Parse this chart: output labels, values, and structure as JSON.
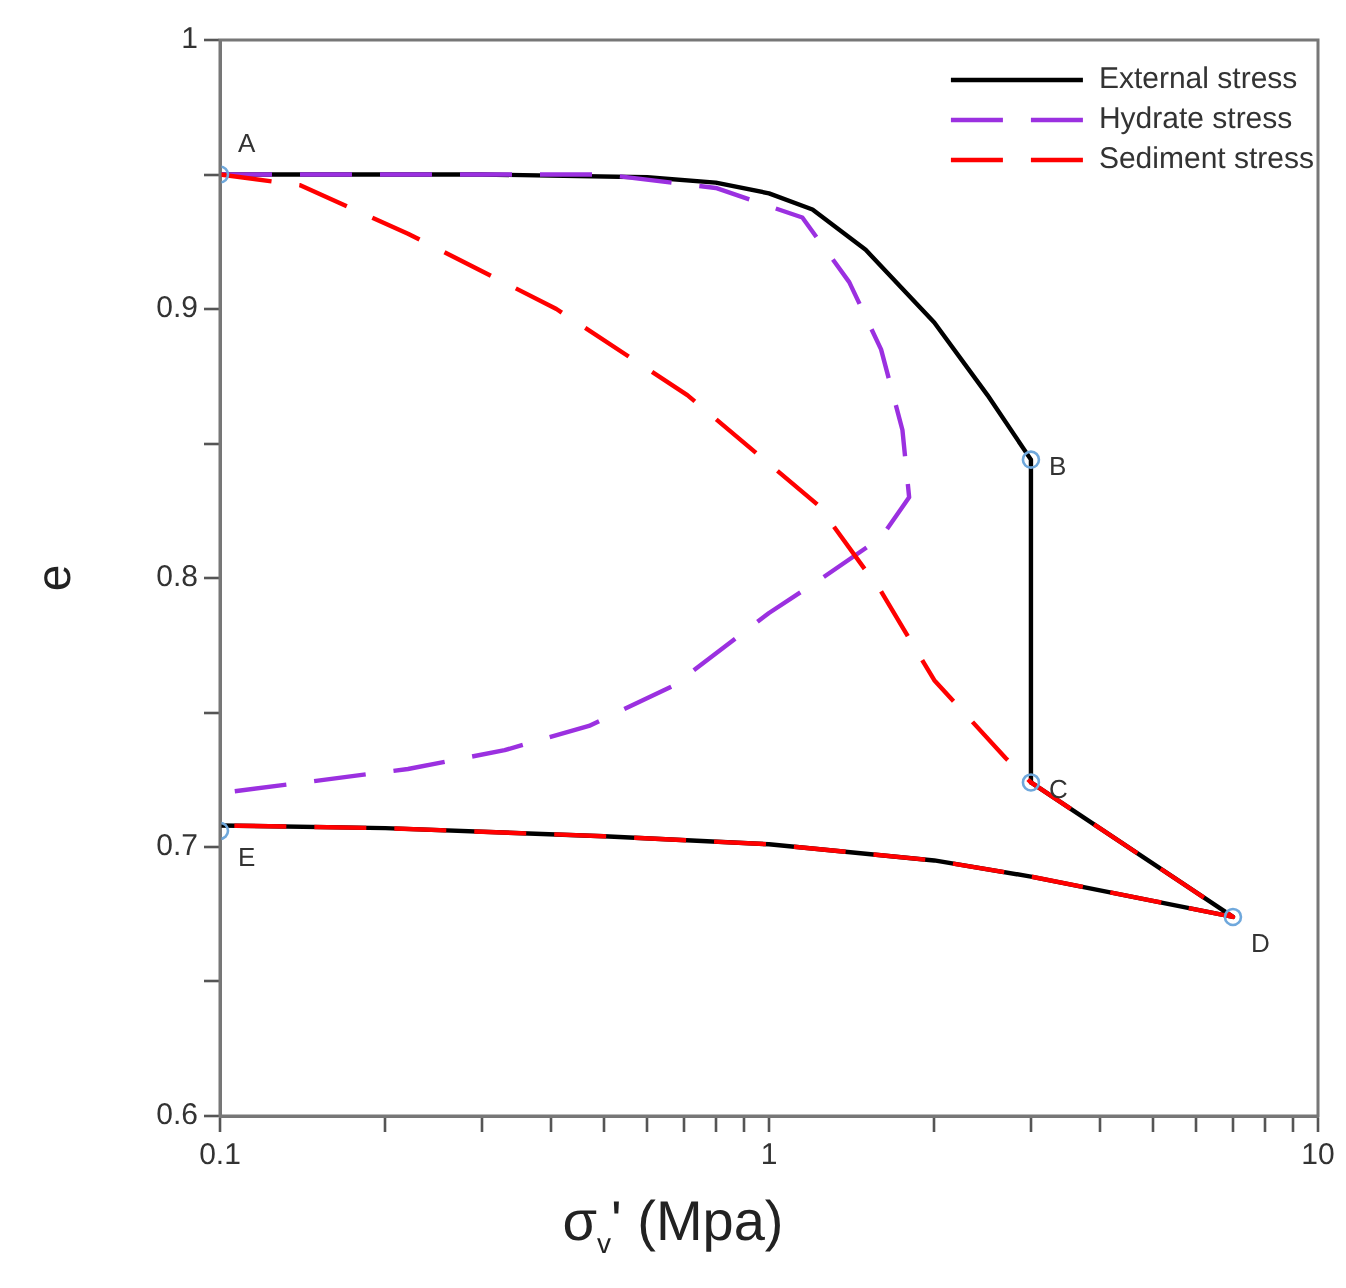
{
  "chart_data": {
    "type": "line",
    "xlabel": "σ$_{v}$' (Mpa)",
    "ylabel": "e",
    "log": "x",
    "xlim": [
      0.1,
      10
    ],
    "ylim": [
      0.6,
      1
    ],
    "xticks": [
      0.1,
      {
        "value": 0.2,
        "label": null
      },
      {
        "value": 0.3,
        "label": null
      },
      {
        "value": 0.4,
        "label": null
      },
      {
        "value": 0.5,
        "label": null
      },
      {
        "value": 0.6,
        "label": null
      },
      {
        "value": 0.7,
        "label": null
      },
      {
        "value": 0.8,
        "label": null
      },
      {
        "value": 0.9,
        "label": null
      },
      1,
      {
        "value": 2,
        "label": null
      },
      {
        "value": 3,
        "label": null
      },
      {
        "value": 4,
        "label": null
      },
      {
        "value": 5,
        "label": null
      },
      {
        "value": 6,
        "label": null
      },
      {
        "value": 7,
        "label": null
      },
      {
        "value": 8,
        "label": null
      },
      {
        "value": 9,
        "label": null
      },
      10
    ],
    "yticks": [
      0.6,
      {
        "value": 0.65,
        "label": null
      },
      0.7,
      {
        "value": 0.75,
        "label": null
      },
      0.8,
      {
        "value": 0.85,
        "label": null
      },
      0.9,
      {
        "value": 0.95,
        "label": null
      },
      1
    ],
    "grid": false,
    "legend": "top right",
    "marker": "none",
    "series": [
      {
        "name": "External stress",
        "color": "#000000",
        "line_style": "solid",
        "x": [
          0.1,
          0.3,
          0.6,
          0.8,
          1,
          1.2,
          1.5,
          2,
          2.5,
          3,
          3,
          7,
          5,
          3,
          2,
          1,
          0.5,
          0.2,
          0.1
        ],
        "values": [
          0.95,
          0.95,
          0.949,
          0.947,
          0.943,
          0.937,
          0.922,
          0.895,
          0.868,
          0.844,
          0.724,
          0.674,
          0.68,
          0.689,
          0.695,
          0.701,
          0.704,
          0.707,
          0.708
        ]
      },
      {
        "name": "Hydrate stress",
        "color": "#9b30e0",
        "line_style": "dashed",
        "x": [
          0.1,
          0.5,
          0.8,
          1.15,
          1.4,
          1.6,
          1.75,
          1.8,
          1.6,
          1.25,
          1,
          0.67,
          0.47,
          0.33,
          0.22,
          0.1
        ],
        "values": [
          0.95,
          0.95,
          0.945,
          0.934,
          0.91,
          0.885,
          0.855,
          0.83,
          0.815,
          0.8,
          0.787,
          0.76,
          0.745,
          0.736,
          0.729,
          0.72
        ]
      },
      {
        "name": "Sediment stress",
        "color": "#ff0000",
        "line_style": "dashed",
        "x": [
          0.1,
          0.14,
          0.22,
          0.41,
          0.71,
          1.23,
          1.6,
          2,
          2.7,
          3,
          7,
          5,
          3,
          2,
          1,
          0.5,
          0.2,
          0.1
        ],
        "values": [
          0.95,
          0.946,
          0.928,
          0.9,
          0.868,
          0.827,
          0.795,
          0.762,
          0.733,
          0.724,
          0.674,
          0.68,
          0.689,
          0.695,
          0.701,
          0.704,
          0.707,
          0.708
        ]
      },
      {
        "type": "scatter",
        "color": "#6fa8dc",
        "marker": "circle",
        "x": [
          0.1,
          3,
          3,
          7,
          0.1
        ],
        "values": [
          0.95,
          0.844,
          0.724,
          0.674,
          0.706
        ]
      }
    ],
    "annotations": [
      {
        "text": "A",
        "x": 0.1,
        "y": 0.95
      },
      {
        "text": "B",
        "x": 3,
        "y": 0.844
      },
      {
        "text": "C",
        "x": 3,
        "y": 0.724
      },
      {
        "text": "D",
        "x": 7,
        "y": 0.674
      },
      {
        "text": "E",
        "x": 0.1,
        "y": 0.706
      }
    ]
  }
}
